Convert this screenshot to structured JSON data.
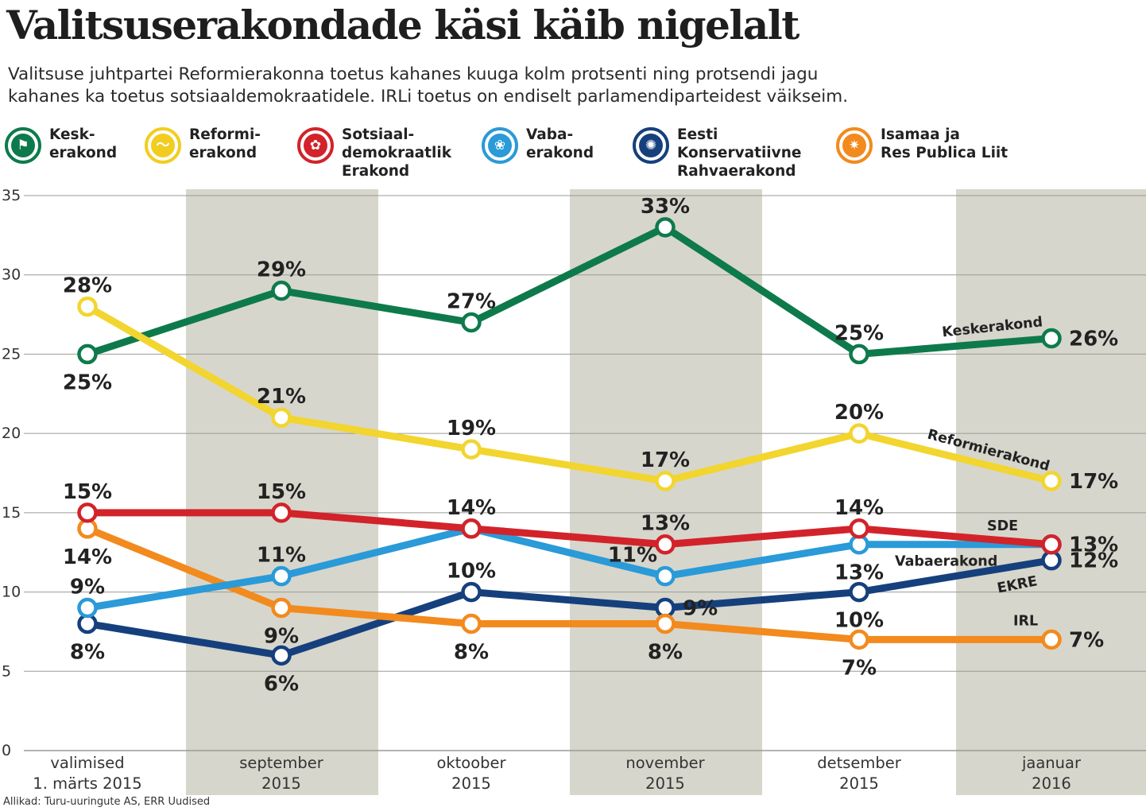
{
  "title": "Valitsuserakondade käsi käib nigelalt",
  "subtitle": [
    "Valitsuse juhtpartei Reformierakonna toetus kahanes kuuga kolm protsenti ning protsendi jagu",
    "kahanes ka toetus sotsiaaldemokraatidele. IRLi toetus on endiselt parlamendiparteidest väikseim."
  ],
  "legend": [
    {
      "lines": [
        "Kesk-",
        "erakond"
      ],
      "color": "#0e7a4c",
      "icon": "squirrel-icon",
      "glyph": "⚑"
    },
    {
      "lines": [
        "Reformi-",
        "erakond"
      ],
      "color": "#f2cd1f",
      "icon": "squirrel-silhouette-icon",
      "glyph": "〜"
    },
    {
      "lines": [
        "Sotsiaal-",
        "demokraatlik",
        "Erakond"
      ],
      "color": "#d2232a",
      "icon": "rose-icon",
      "glyph": "✿"
    },
    {
      "lines": [
        "Vaba-",
        "erakond"
      ],
      "color": "#2a9ad8",
      "icon": "flower-icon",
      "glyph": "❀"
    },
    {
      "lines": [
        "Eesti",
        "Konservatiivne",
        "Rahvaerakond"
      ],
      "color": "#15407d",
      "icon": "cornflower-icon",
      "glyph": "✺"
    },
    {
      "lines": [
        "Isamaa ja",
        "Res Publica Liit"
      ],
      "color": "#f28a1e",
      "icon": "star-icon",
      "glyph": "✷"
    }
  ],
  "chart_data": {
    "type": "line",
    "title": "Valitsuserakondade käsi käib nigelalt",
    "xlabel": "",
    "ylabel": "",
    "ylim": [
      0,
      35
    ],
    "yticks": [
      0,
      5,
      10,
      15,
      20,
      25,
      30,
      35
    ],
    "grid": true,
    "categories": [
      [
        "valimised",
        "1. märts 2015"
      ],
      [
        "september",
        "2015"
      ],
      [
        "oktoober",
        "2015"
      ],
      [
        "november",
        "2015"
      ],
      [
        "detsember",
        "2015"
      ],
      [
        "jaanuar",
        "2016"
      ]
    ],
    "series": [
      {
        "name": "Keskerakond",
        "color": "#0e7a4c",
        "values": [
          25,
          29,
          27,
          33,
          25,
          26
        ],
        "labels": [
          "25%",
          "29%",
          "27%",
          "33%",
          "25%",
          "26%"
        ],
        "label_pos": [
          "below",
          "above",
          "above",
          "above",
          "above",
          "right"
        ],
        "end_label": "Keskerakond"
      },
      {
        "name": "Reformierakond",
        "color": "#f2d52f",
        "values": [
          28,
          21,
          19,
          17,
          20,
          17
        ],
        "labels": [
          "28%",
          "21%",
          "19%",
          "17%",
          "20%",
          "17%"
        ],
        "label_pos": [
          "above",
          "above",
          "above",
          "above",
          "above",
          "right"
        ],
        "end_label": "Reformierakond"
      },
      {
        "name": "SDE",
        "color": "#d2232a",
        "values": [
          15,
          15,
          14,
          13,
          14,
          13
        ],
        "labels": [
          "15%",
          "15%",
          "14%",
          "13%",
          "14%",
          "13%"
        ],
        "label_pos": [
          "above",
          "above",
          "above",
          "above",
          "above",
          "right"
        ],
        "end_label": "SDE"
      },
      {
        "name": "Vabaerakond",
        "color": "#2a9ad8",
        "values": [
          9,
          11,
          14,
          11,
          13,
          13
        ],
        "labels": [
          "9%",
          "11%",
          "",
          "11%",
          "13%",
          ""
        ],
        "label_pos": [
          "above",
          "above",
          "",
          "left",
          "below",
          ""
        ],
        "end_label": "Vabaerakond"
      },
      {
        "name": "EKRE",
        "color": "#15407d",
        "values": [
          8,
          6,
          10,
          9,
          10,
          12
        ],
        "labels": [
          "8%",
          "6%",
          "10%",
          "9%",
          "10%",
          "12%"
        ],
        "label_pos": [
          "below",
          "below",
          "above",
          "right",
          "below",
          "right"
        ],
        "end_label": "EKRE"
      },
      {
        "name": "IRL",
        "color": "#f28a1e",
        "values": [
          14,
          9,
          8,
          8,
          7,
          7
        ],
        "labels": [
          "14%",
          "9%",
          "8%",
          "8%",
          "7%",
          "7%"
        ],
        "label_pos": [
          "below",
          "below",
          "below",
          "below",
          "below",
          "right"
        ],
        "end_label": "IRL"
      }
    ]
  },
  "source": "Allikad: Turu-uuringute AS, ERR Uudised"
}
